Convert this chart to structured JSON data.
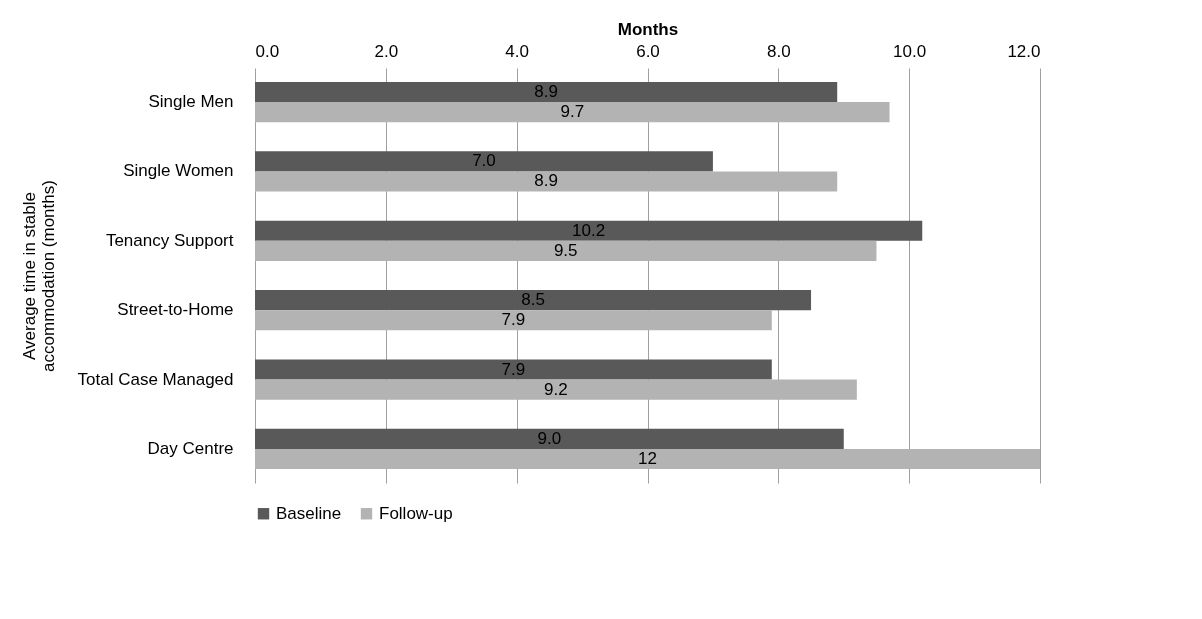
{
  "chart_data": {
    "type": "bar",
    "orientation": "horizontal",
    "xlabel": "Months",
    "ylabel": "Average time in stable accommodation (months)",
    "categories": [
      "Single Men",
      "Single Women",
      "Tenancy Support",
      "Street-to-Home",
      "Total Case Managed",
      "Day Centre"
    ],
    "series": [
      {
        "name": "Baseline",
        "color": "#595959",
        "values": [
          8.9,
          7.0,
          10.2,
          8.5,
          7.9,
          9.0
        ],
        "value_labels": [
          "8.9",
          "7.0",
          "10.2",
          "8.5",
          "7.9",
          "9.0"
        ]
      },
      {
        "name": "Follow-up",
        "color": "#b3b3b3",
        "values": [
          9.7,
          8.9,
          9.5,
          7.9,
          9.2,
          12
        ],
        "value_labels": [
          "9.7",
          "8.9",
          "9.5",
          "7.9",
          "9.2",
          "12"
        ]
      }
    ],
    "xlim": [
      0,
      12
    ],
    "xticks": [
      {
        "value": 0,
        "label": "0.0"
      },
      {
        "value": 2,
        "label": "2.0"
      },
      {
        "value": 4,
        "label": "4.0"
      },
      {
        "value": 6,
        "label": "6.0"
      },
      {
        "value": 8,
        "label": "8.0"
      },
      {
        "value": 10,
        "label": "10.0"
      },
      {
        "value": 12,
        "label": "12.0"
      }
    ],
    "grid": "x",
    "legend": "bottom"
  }
}
